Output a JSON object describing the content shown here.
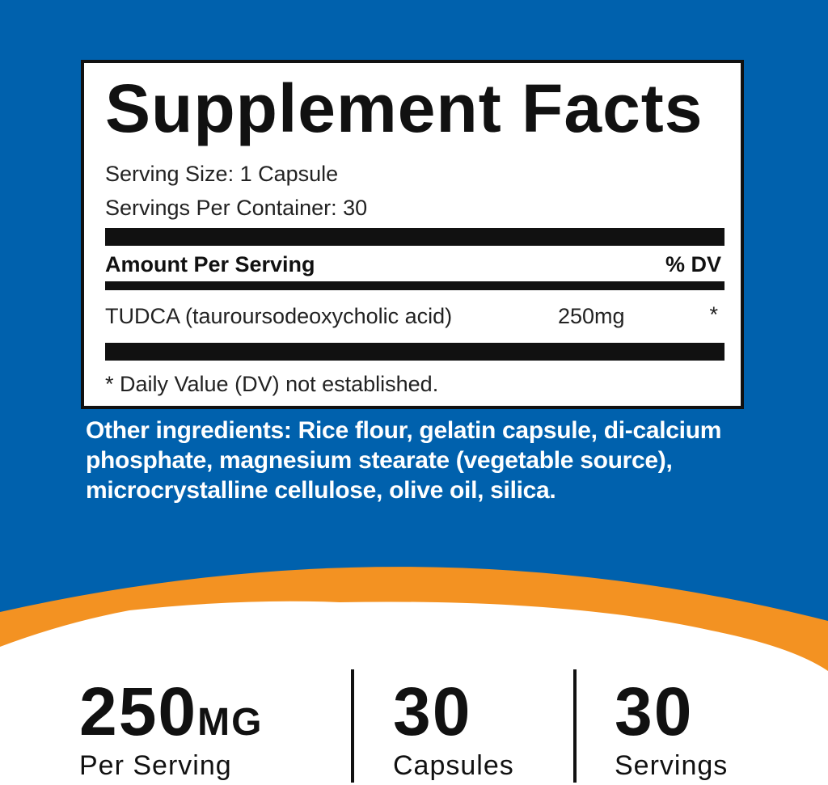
{
  "colors": {
    "blue": "#0061ad",
    "orange": "#f39222",
    "white": "#ffffff",
    "black": "#111111"
  },
  "facts": {
    "title": "Supplement Facts",
    "serving_size": "Serving Size: 1 Capsule",
    "servings_per_container": "Servings Per Container: 30",
    "amount_header": "Amount Per Serving",
    "dv_header": "% DV",
    "ingredient": {
      "name": "TUDCA (tauroursodeoxycholic acid)",
      "amount": "250mg",
      "dv": "*"
    },
    "footnote": "* Daily Value (DV) not established."
  },
  "other_ingredients": "Other ingredients: Rice flour, gelatin capsule, di-calcium phosphate, magnesium stearate (vegetable source), microcrystalline cellulose, olive oil, silica.",
  "stats": [
    {
      "value": "250",
      "unit": "MG",
      "label": "Per Serving"
    },
    {
      "value": "30",
      "unit": "",
      "label": "Capsules"
    },
    {
      "value": "30",
      "unit": "",
      "label": "Servings"
    }
  ]
}
